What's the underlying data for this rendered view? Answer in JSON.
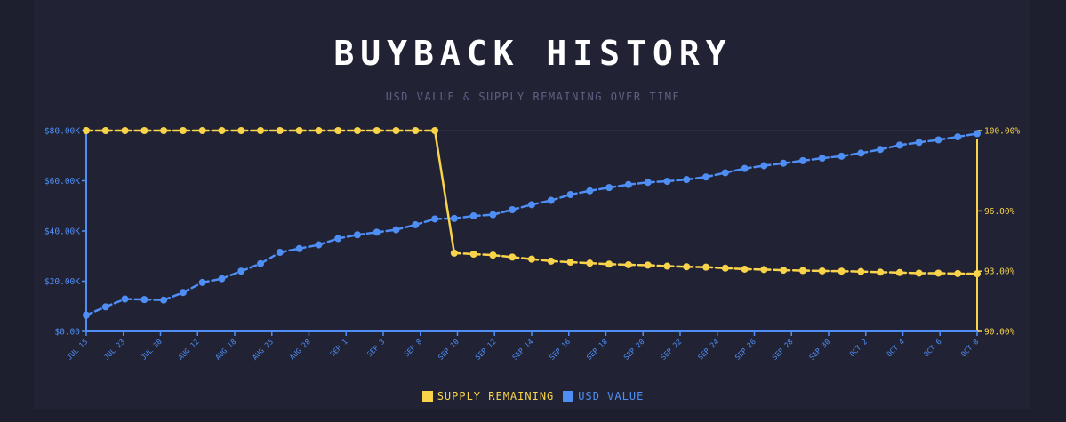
{
  "title": "BUYBACK HISTORY",
  "subtitle": "USD VALUE & SUPPLY REMAINING OVER TIME",
  "colors": {
    "supply": "#f9d44a",
    "usd": "#4f8ef5",
    "background": "#1d1f2f",
    "panel": "#212335",
    "grid": "#2e3146"
  },
  "legend": [
    {
      "label": "SUPPLY REMAINING",
      "color": "#f9d44a"
    },
    {
      "label": "USD VALUE",
      "color": "#4f8ef5"
    }
  ],
  "chart_data": {
    "type": "line",
    "x_tick_labels": [
      "JUL 15",
      "JUL 23",
      "JUL 30",
      "AUG 12",
      "AUG 18",
      "AUG 25",
      "AUG 28",
      "SEP 1",
      "SEP 3",
      "SEP 8",
      "SEP 10",
      "SEP 12",
      "SEP 14",
      "SEP 16",
      "SEP 18",
      "SEP 20",
      "SEP 22",
      "SEP 24",
      "SEP 26",
      "SEP 28",
      "SEP 30",
      "OCT 2",
      "OCT 4",
      "OCT 6",
      "OCT 8"
    ],
    "y_left": {
      "ticks": [
        "$0.00",
        "$20.00K",
        "$40.00K",
        "$60.00K",
        "$80.00K"
      ],
      "range": [
        0,
        80000
      ]
    },
    "y_right": {
      "ticks": [
        "90.00%",
        "93.00%",
        "96.00%",
        "100.00%"
      ],
      "tick_values": [
        90,
        93,
        96,
        100
      ],
      "range": [
        90,
        100
      ]
    },
    "grid": "top-line-only",
    "legend_position": "bottom-center",
    "series": [
      {
        "name": "USD VALUE",
        "axis": "left",
        "color": "#4f8ef5",
        "values": [
          6500,
          9800,
          12900,
          12700,
          12500,
          15500,
          19500,
          21000,
          24000,
          27000,
          31500,
          33000,
          34500,
          37000,
          38500,
          39500,
          40500,
          42500,
          44800,
          45000,
          46000,
          46500,
          48500,
          50500,
          52200,
          54500,
          56000,
          57300,
          58500,
          59400,
          59800,
          60500,
          61500,
          63200,
          64900,
          66000,
          67000,
          68000,
          69000,
          69800,
          71000,
          72500,
          74200,
          75300,
          76300,
          77500,
          78800
        ]
      },
      {
        "name": "SUPPLY REMAINING",
        "axis": "right",
        "color": "#f9d44a",
        "values": [
          100,
          100,
          100,
          100,
          100,
          100,
          100,
          100,
          100,
          100,
          100,
          100,
          100,
          100,
          100,
          100,
          100,
          100,
          100,
          93.9,
          93.85,
          93.8,
          93.7,
          93.6,
          93.5,
          93.45,
          93.4,
          93.35,
          93.32,
          93.3,
          93.25,
          93.22,
          93.2,
          93.15,
          93.1,
          93.08,
          93.05,
          93.03,
          93.01,
          93.0,
          92.98,
          92.95,
          92.93,
          92.9,
          92.9,
          92.88,
          92.87
        ]
      }
    ]
  }
}
